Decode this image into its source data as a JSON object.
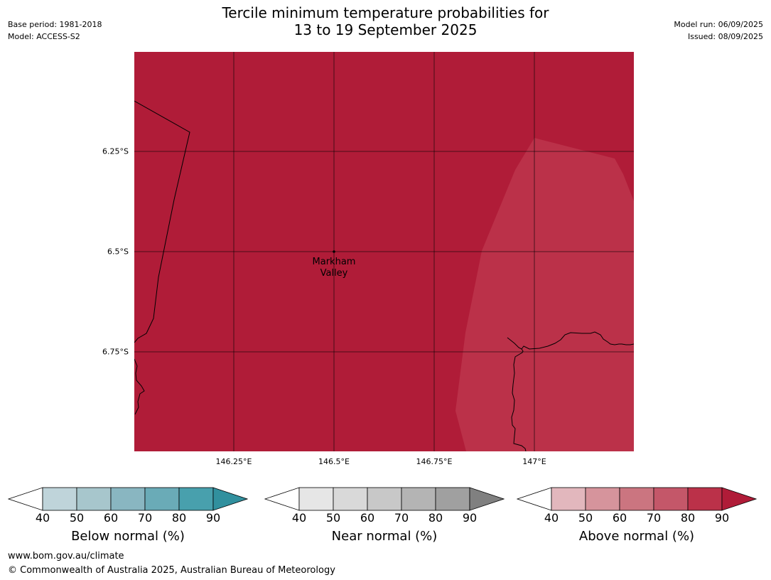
{
  "header": {
    "title_line1": "Tercile minimum temperature probabilities for",
    "title_line2": "13 to 19 September 2025",
    "base_period": "Base period: 1981-2018",
    "model": "Model: ACCESS-S2",
    "model_run": "Model run: 06/09/2025",
    "issued": "Issued: 08/09/2025"
  },
  "map": {
    "lat_labels": [
      "6.25°S",
      "6.5°S",
      "6.75°S"
    ],
    "lon_labels": [
      "146.25°E",
      "146.5°E",
      "146.75°E",
      "147°E"
    ],
    "place_label_line1": "Markham",
    "place_label_line2": "Valley",
    "fill_colors": {
      "above_80_90": "#b01c38",
      "above_70_80": "#bb3149"
    },
    "grid_color": "#000000"
  },
  "legends": [
    {
      "label": "Below normal (%)",
      "ticks": [
        "40",
        "50",
        "60",
        "70",
        "80",
        "90"
      ],
      "colors": [
        "#bfd4da",
        "#a7c6cc",
        "#89b6c1",
        "#6aabb7",
        "#48a0ad",
        "#31909e"
      ]
    },
    {
      "label": "Near normal (%)",
      "ticks": [
        "40",
        "50",
        "60",
        "70",
        "80",
        "90"
      ],
      "colors": [
        "#e6e6e6",
        "#d9d9d9",
        "#c8c8c8",
        "#b4b4b4",
        "#a0a0a0",
        "#808080"
      ]
    },
    {
      "label": "Above normal (%)",
      "ticks": [
        "40",
        "50",
        "60",
        "70",
        "80",
        "90"
      ],
      "colors": [
        "#e2b7bd",
        "#d6949c",
        "#cb7580",
        "#c45769",
        "#bb3149",
        "#b01c38"
      ]
    }
  ],
  "footer": {
    "url": "www.bom.gov.au/climate",
    "copyright": "© Commonwealth of Australia 2025, Australian Bureau of Meteorology"
  }
}
